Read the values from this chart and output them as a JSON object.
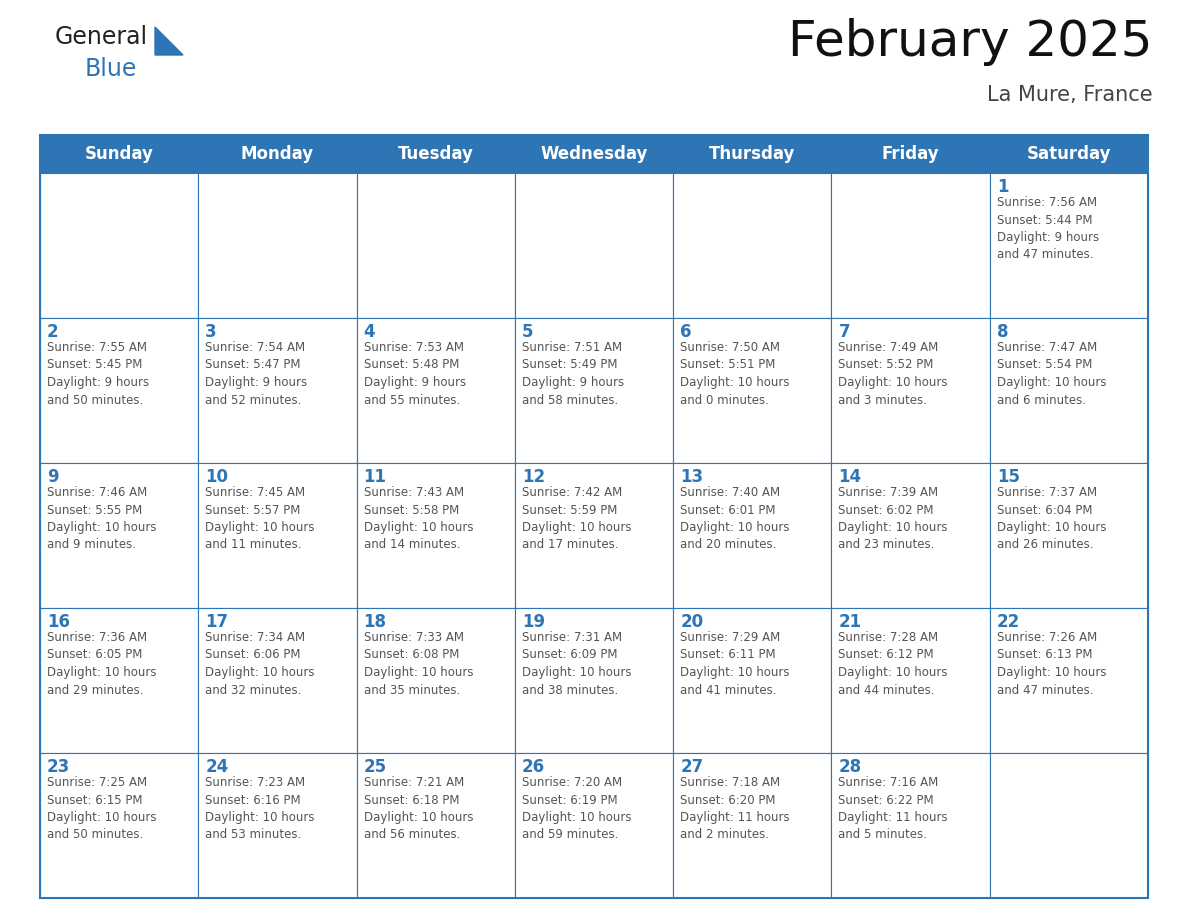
{
  "title": "February 2025",
  "subtitle": "La Mure, France",
  "header_bg_color": "#2E75B6",
  "header_text_color": "#FFFFFF",
  "cell_bg_color": "#FFFFFF",
  "cell_border_color": "#2E75B6",
  "day_number_color": "#2E75B6",
  "cell_text_color": "#555555",
  "background_color": "#FFFFFF",
  "days_of_week": [
    "Sunday",
    "Monday",
    "Tuesday",
    "Wednesday",
    "Thursday",
    "Friday",
    "Saturday"
  ],
  "weeks": [
    [
      {
        "day": "",
        "info": ""
      },
      {
        "day": "",
        "info": ""
      },
      {
        "day": "",
        "info": ""
      },
      {
        "day": "",
        "info": ""
      },
      {
        "day": "",
        "info": ""
      },
      {
        "day": "",
        "info": ""
      },
      {
        "day": "1",
        "info": "Sunrise: 7:56 AM\nSunset: 5:44 PM\nDaylight: 9 hours\nand 47 minutes."
      }
    ],
    [
      {
        "day": "2",
        "info": "Sunrise: 7:55 AM\nSunset: 5:45 PM\nDaylight: 9 hours\nand 50 minutes."
      },
      {
        "day": "3",
        "info": "Sunrise: 7:54 AM\nSunset: 5:47 PM\nDaylight: 9 hours\nand 52 minutes."
      },
      {
        "day": "4",
        "info": "Sunrise: 7:53 AM\nSunset: 5:48 PM\nDaylight: 9 hours\nand 55 minutes."
      },
      {
        "day": "5",
        "info": "Sunrise: 7:51 AM\nSunset: 5:49 PM\nDaylight: 9 hours\nand 58 minutes."
      },
      {
        "day": "6",
        "info": "Sunrise: 7:50 AM\nSunset: 5:51 PM\nDaylight: 10 hours\nand 0 minutes."
      },
      {
        "day": "7",
        "info": "Sunrise: 7:49 AM\nSunset: 5:52 PM\nDaylight: 10 hours\nand 3 minutes."
      },
      {
        "day": "8",
        "info": "Sunrise: 7:47 AM\nSunset: 5:54 PM\nDaylight: 10 hours\nand 6 minutes."
      }
    ],
    [
      {
        "day": "9",
        "info": "Sunrise: 7:46 AM\nSunset: 5:55 PM\nDaylight: 10 hours\nand 9 minutes."
      },
      {
        "day": "10",
        "info": "Sunrise: 7:45 AM\nSunset: 5:57 PM\nDaylight: 10 hours\nand 11 minutes."
      },
      {
        "day": "11",
        "info": "Sunrise: 7:43 AM\nSunset: 5:58 PM\nDaylight: 10 hours\nand 14 minutes."
      },
      {
        "day": "12",
        "info": "Sunrise: 7:42 AM\nSunset: 5:59 PM\nDaylight: 10 hours\nand 17 minutes."
      },
      {
        "day": "13",
        "info": "Sunrise: 7:40 AM\nSunset: 6:01 PM\nDaylight: 10 hours\nand 20 minutes."
      },
      {
        "day": "14",
        "info": "Sunrise: 7:39 AM\nSunset: 6:02 PM\nDaylight: 10 hours\nand 23 minutes."
      },
      {
        "day": "15",
        "info": "Sunrise: 7:37 AM\nSunset: 6:04 PM\nDaylight: 10 hours\nand 26 minutes."
      }
    ],
    [
      {
        "day": "16",
        "info": "Sunrise: 7:36 AM\nSunset: 6:05 PM\nDaylight: 10 hours\nand 29 minutes."
      },
      {
        "day": "17",
        "info": "Sunrise: 7:34 AM\nSunset: 6:06 PM\nDaylight: 10 hours\nand 32 minutes."
      },
      {
        "day": "18",
        "info": "Sunrise: 7:33 AM\nSunset: 6:08 PM\nDaylight: 10 hours\nand 35 minutes."
      },
      {
        "day": "19",
        "info": "Sunrise: 7:31 AM\nSunset: 6:09 PM\nDaylight: 10 hours\nand 38 minutes."
      },
      {
        "day": "20",
        "info": "Sunrise: 7:29 AM\nSunset: 6:11 PM\nDaylight: 10 hours\nand 41 minutes."
      },
      {
        "day": "21",
        "info": "Sunrise: 7:28 AM\nSunset: 6:12 PM\nDaylight: 10 hours\nand 44 minutes."
      },
      {
        "day": "22",
        "info": "Sunrise: 7:26 AM\nSunset: 6:13 PM\nDaylight: 10 hours\nand 47 minutes."
      }
    ],
    [
      {
        "day": "23",
        "info": "Sunrise: 7:25 AM\nSunset: 6:15 PM\nDaylight: 10 hours\nand 50 minutes."
      },
      {
        "day": "24",
        "info": "Sunrise: 7:23 AM\nSunset: 6:16 PM\nDaylight: 10 hours\nand 53 minutes."
      },
      {
        "day": "25",
        "info": "Sunrise: 7:21 AM\nSunset: 6:18 PM\nDaylight: 10 hours\nand 56 minutes."
      },
      {
        "day": "26",
        "info": "Sunrise: 7:20 AM\nSunset: 6:19 PM\nDaylight: 10 hours\nand 59 minutes."
      },
      {
        "day": "27",
        "info": "Sunrise: 7:18 AM\nSunset: 6:20 PM\nDaylight: 11 hours\nand 2 minutes."
      },
      {
        "day": "28",
        "info": "Sunrise: 7:16 AM\nSunset: 6:22 PM\nDaylight: 11 hours\nand 5 minutes."
      },
      {
        "day": "",
        "info": ""
      }
    ]
  ],
  "logo_triangle_color": "#2E75B6",
  "title_fontsize": 36,
  "subtitle_fontsize": 15,
  "header_fontsize": 12,
  "day_number_fontsize": 12,
  "cell_text_fontsize": 8.5,
  "fig_width": 11.88,
  "fig_height": 9.18,
  "fig_dpi": 100
}
